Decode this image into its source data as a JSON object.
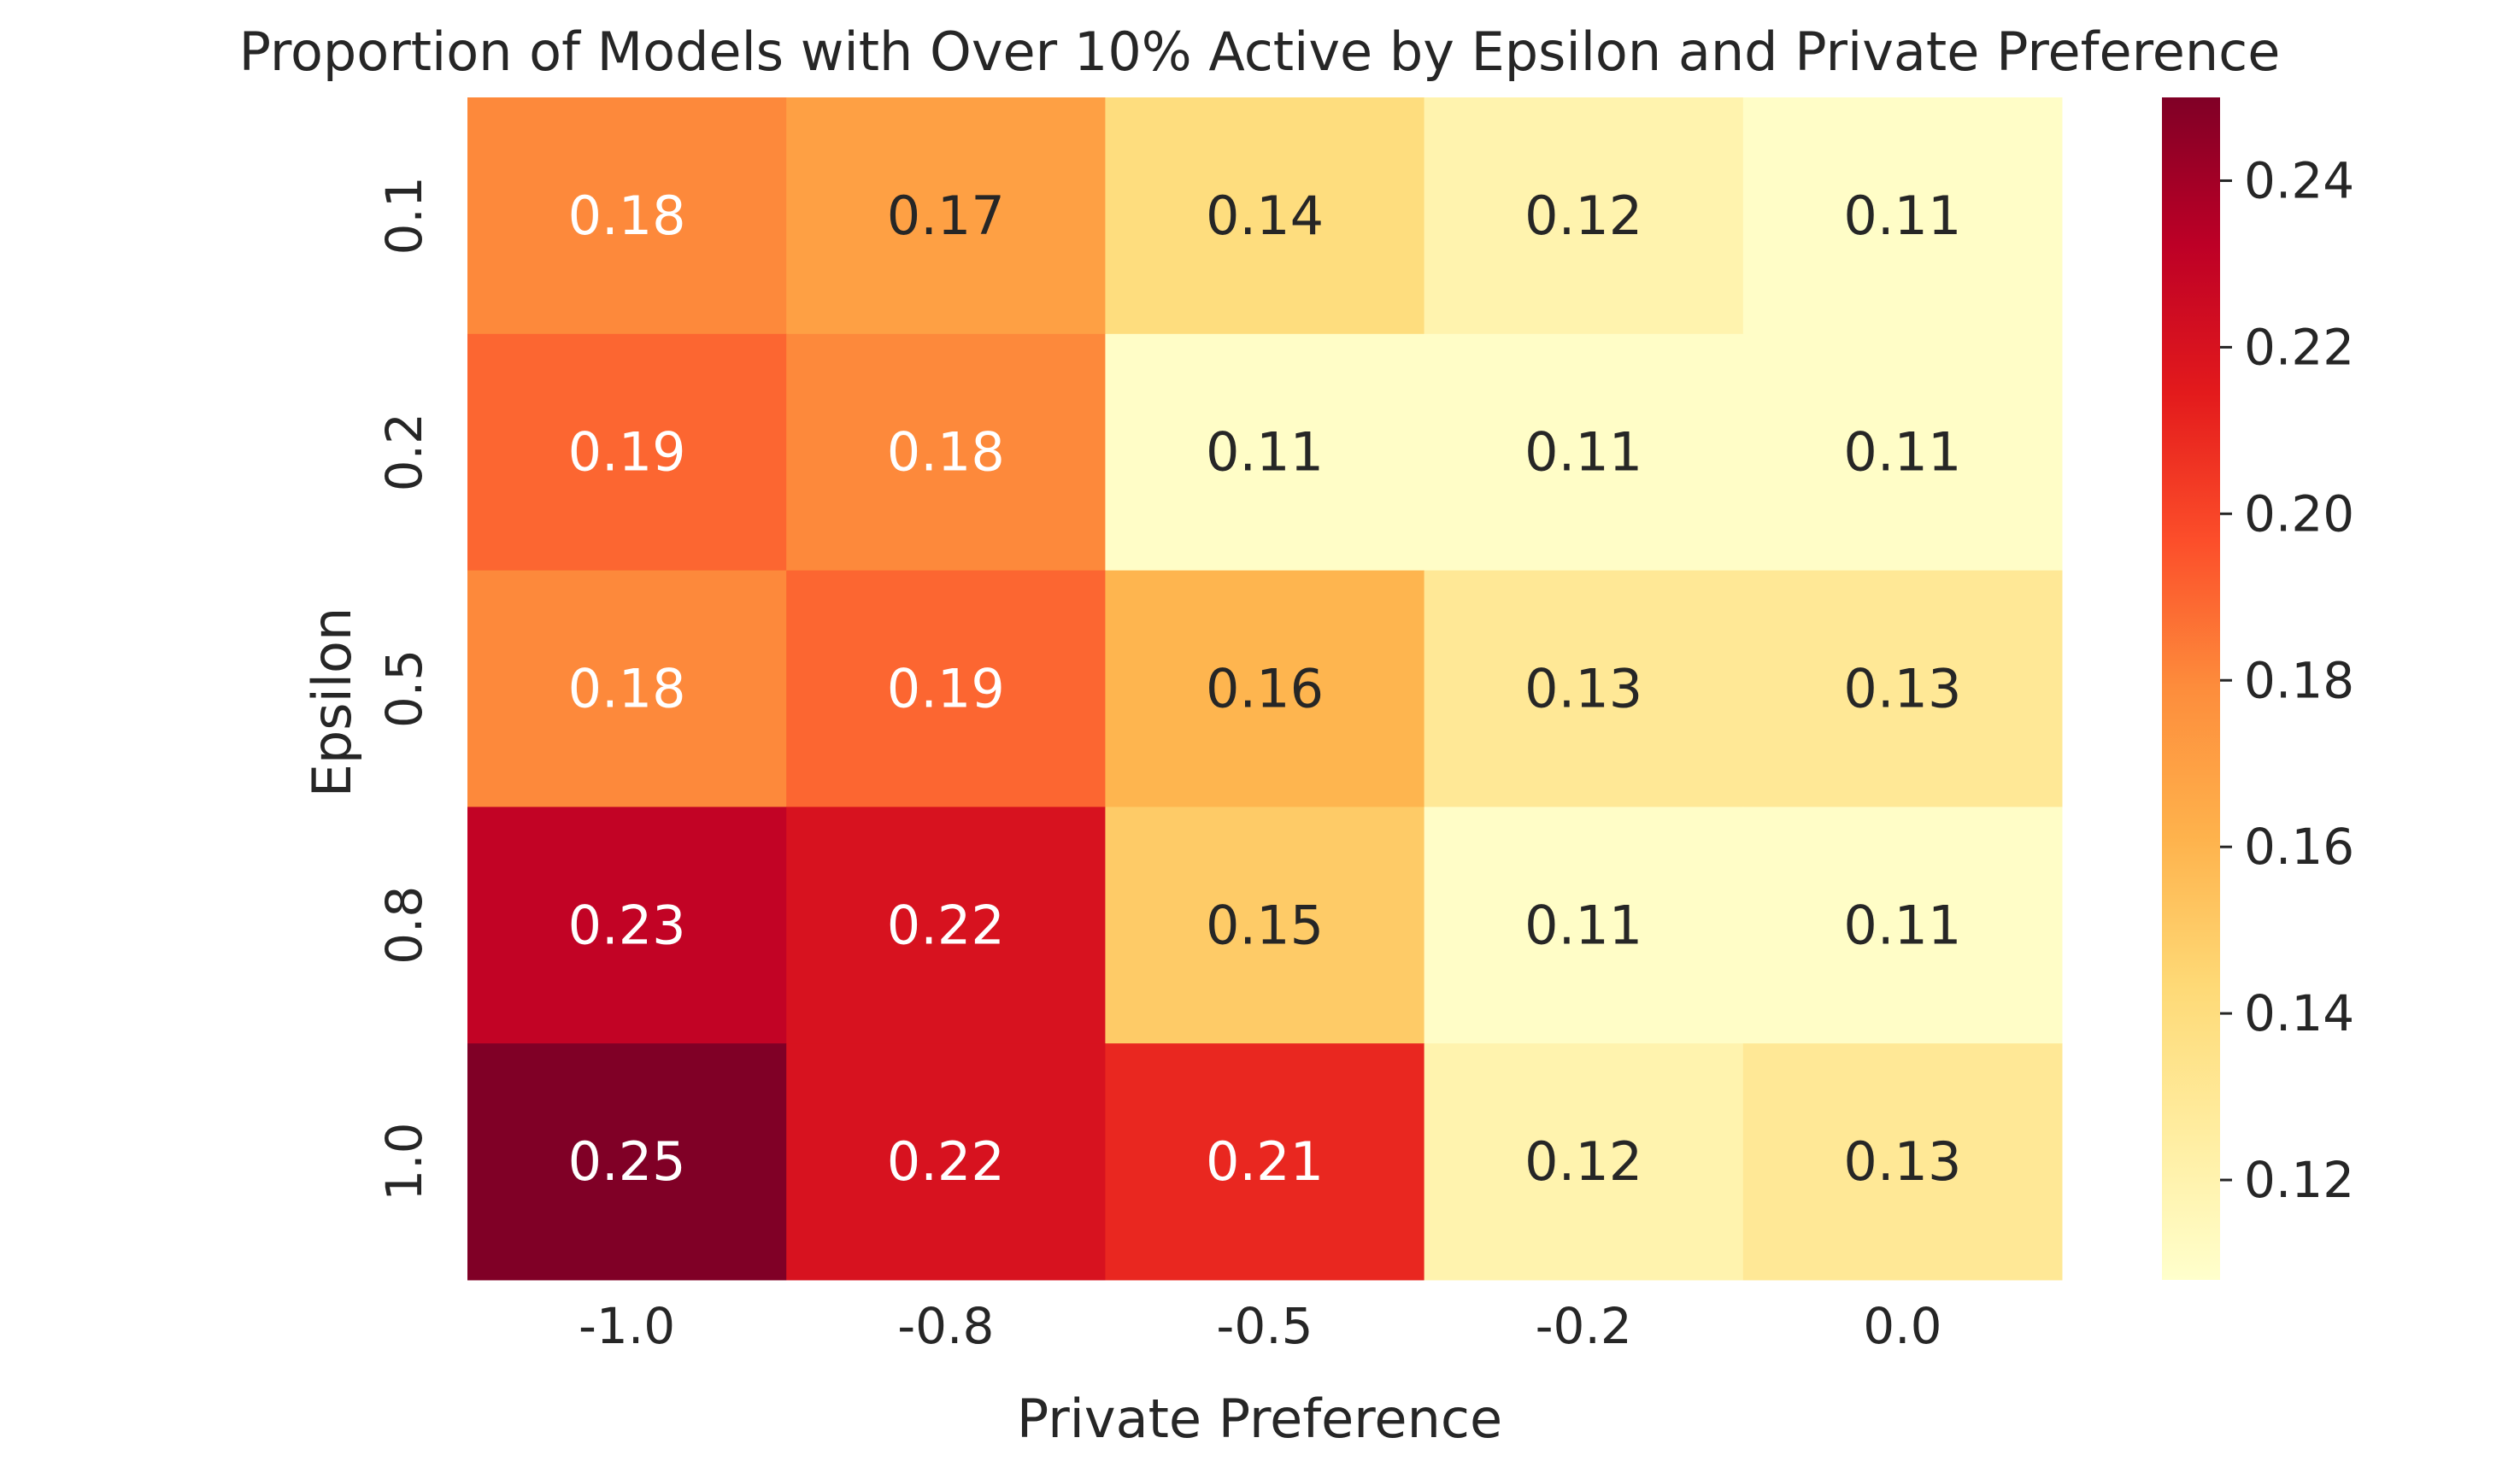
{
  "chart_data": {
    "type": "heatmap",
    "title": "Proportion of Models with Over 10% Active by Epsilon and Private Preference",
    "xlabel": "Private Preference",
    "ylabel": "Epsilon",
    "x_categories": [
      "-1.0",
      "-0.8",
      "-0.5",
      "-0.2",
      "0.0"
    ],
    "y_categories": [
      "0.1",
      "0.2",
      "0.5",
      "0.8",
      "1.0"
    ],
    "values": [
      [
        0.18,
        0.17,
        0.14,
        0.12,
        0.11
      ],
      [
        0.19,
        0.18,
        0.11,
        0.11,
        0.11
      ],
      [
        0.18,
        0.19,
        0.16,
        0.13,
        0.13
      ],
      [
        0.23,
        0.22,
        0.15,
        0.11,
        0.11
      ],
      [
        0.25,
        0.22,
        0.21,
        0.12,
        0.13
      ]
    ],
    "labels": [
      [
        "0.18",
        "0.17",
        "0.14",
        "0.12",
        "0.11"
      ],
      [
        "0.19",
        "0.18",
        "0.11",
        "0.11",
        "0.11"
      ],
      [
        "0.18",
        "0.19",
        "0.16",
        "0.13",
        "0.13"
      ],
      [
        "0.23",
        "0.22",
        "0.15",
        "0.11",
        "0.11"
      ],
      [
        "0.25",
        "0.22",
        "0.21",
        "0.12",
        "0.13"
      ]
    ],
    "colormap": "YlOrRd",
    "colorbar": {
      "min": 0.108,
      "max": 0.25,
      "ticks": [
        "0.12",
        "0.14",
        "0.16",
        "0.18",
        "0.20",
        "0.22",
        "0.24"
      ]
    },
    "grid": false
  }
}
